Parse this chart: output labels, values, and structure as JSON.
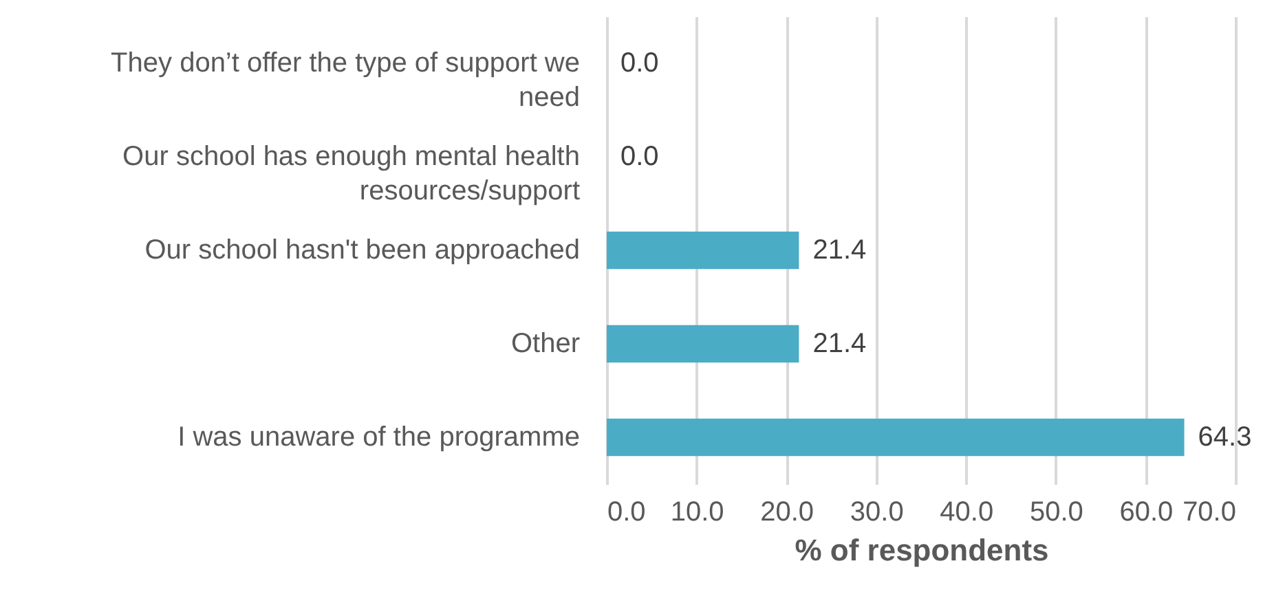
{
  "chart_data": {
    "type": "bar",
    "orientation": "horizontal",
    "xlabel": "% of respondents",
    "categories": [
      "They don’t offer the type of support we need",
      "Our school has enough mental health resources/support",
      "Our school hasn't been approached",
      "Other",
      "I was unaware of the programme"
    ],
    "values": [
      0.0,
      0.0,
      21.4,
      21.4,
      64.3
    ],
    "value_labels": [
      "0.0",
      "0.0",
      "21.4",
      "21.4",
      "64.3"
    ],
    "color": "#4bacc6",
    "xlim": [
      0,
      70
    ],
    "xticks": [
      {
        "value": 0,
        "label": "0.0"
      },
      {
        "value": 10,
        "label": "10.0"
      },
      {
        "value": 20,
        "label": "20.0"
      },
      {
        "value": 30,
        "label": "30.0"
      },
      {
        "value": 40,
        "label": "40.0"
      },
      {
        "value": 50,
        "label": "50.0"
      },
      {
        "value": 60,
        "label": "60.0"
      },
      {
        "value": 70,
        "label": "70.0"
      }
    ],
    "grid": "x"
  }
}
